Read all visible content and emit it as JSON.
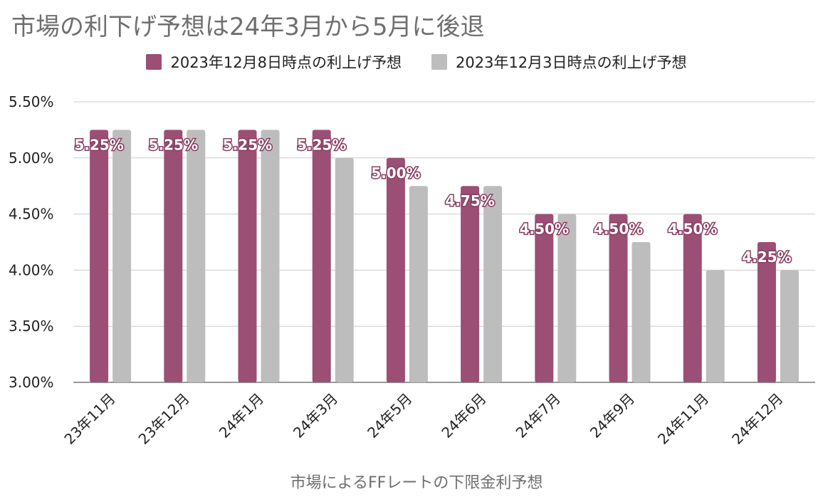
{
  "chart_data": {
    "type": "bar",
    "title": "市場の利下げ予想は24年3月から5月に後退",
    "xlabel": "市場によるFFレートの下限金利予想",
    "ylabel": "",
    "ylim": [
      3.0,
      5.5
    ],
    "yticks": [
      "3.00%",
      "3.50%",
      "4.00%",
      "4.50%",
      "5.00%",
      "5.50%"
    ],
    "grid": true,
    "legend_position": "top-center",
    "categories": [
      "23年11月",
      "23年12月",
      "24年1月",
      "24年3月",
      "24年5月",
      "24年6月",
      "24年7月",
      "24年9月",
      "24年11月",
      "24年12月"
    ],
    "series": [
      {
        "name": "2023年12月8日時点の利上げ予想",
        "color": "#9b4f75",
        "values": [
          5.25,
          5.25,
          5.25,
          5.25,
          5.0,
          4.75,
          4.5,
          4.5,
          4.5,
          4.25
        ],
        "labels": [
          "5.25%",
          "5.25%",
          "5.25%",
          "5.25%",
          "5.00%",
          "4.75%",
          "4.50%",
          "4.50%",
          "4.50%",
          "4.25%"
        ]
      },
      {
        "name": "2023年12月3日時点の利上げ予想",
        "color": "#bdbdbd",
        "values": [
          5.25,
          5.25,
          5.25,
          5.0,
          4.75,
          4.75,
          4.5,
          4.25,
          4.0,
          4.0
        ]
      }
    ]
  }
}
